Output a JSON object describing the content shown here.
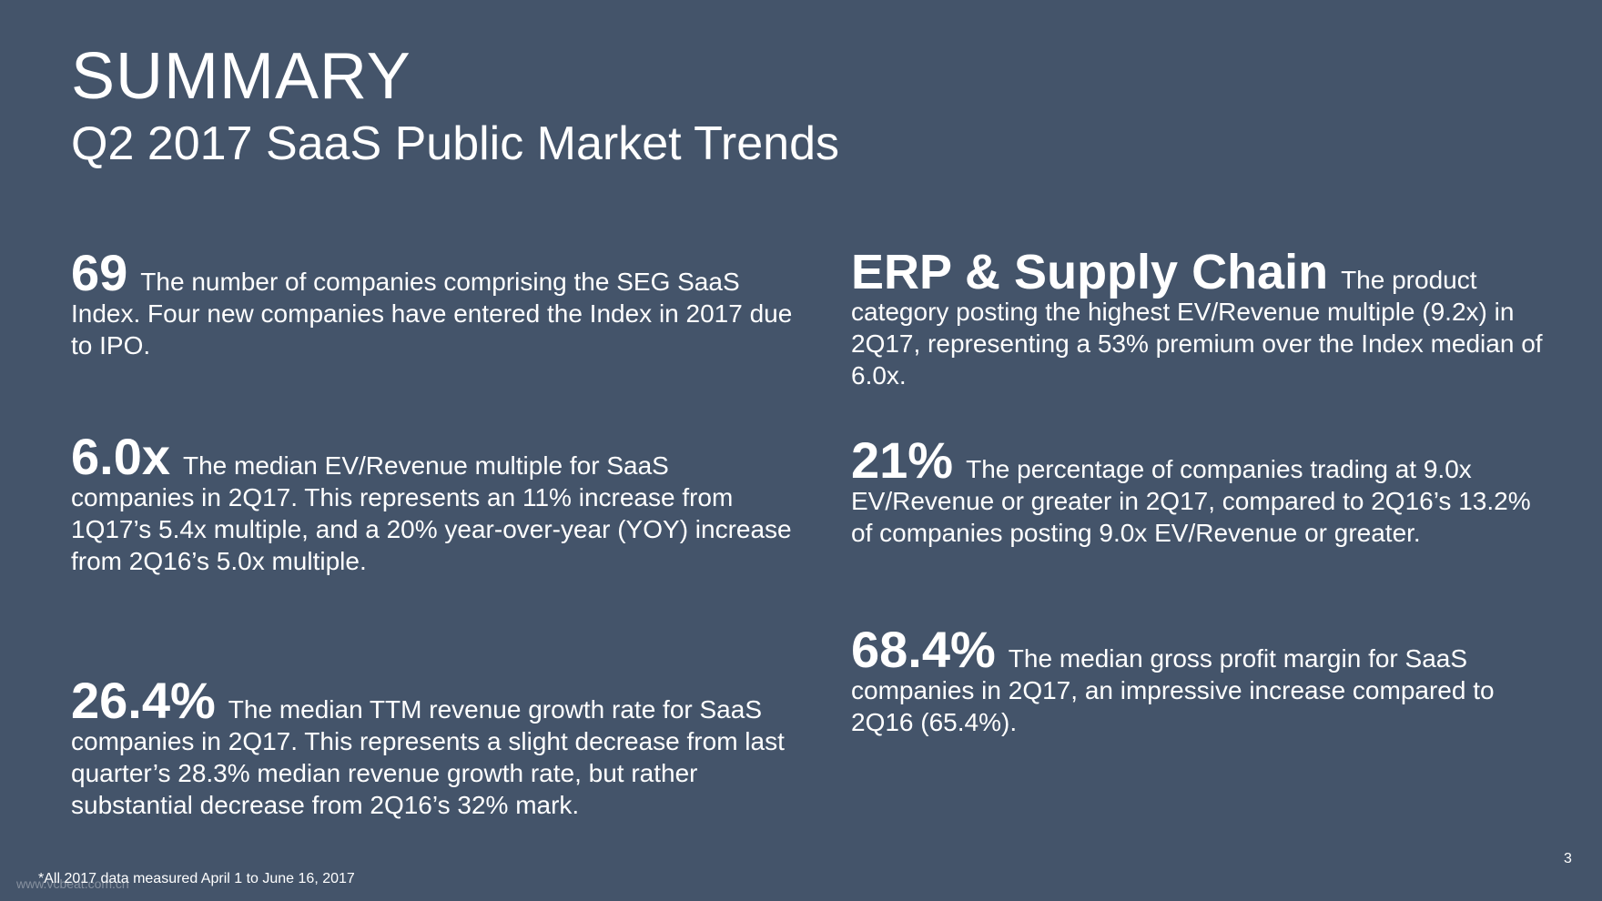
{
  "header": {
    "title": "SUMMARY",
    "subtitle": "Q2 2017 SaaS Public Market Trends"
  },
  "stats": [
    {
      "figure": "69",
      "text": "The number of companies comprising the SEG SaaS Index. Four new companies have entered the Index in 2017 due to IPO."
    },
    {
      "figure": "6.0x",
      "text": "The median EV/Revenue multiple for SaaS companies in 2Q17. This represents an 11% increase from 1Q17’s 5.4x multiple, and a 20% year-over-year (YOY) increase from 2Q16’s 5.0x multiple."
    },
    {
      "figure": "26.4%",
      "text": "The median TTM revenue growth rate for SaaS companies in 2Q17. This represents a slight decrease from last quarter’s 28.3% median revenue growth rate, but rather substantial decrease from 2Q16’s 32% mark."
    },
    {
      "figure": "ERP & Supply Chain",
      "text": "The product category posting the highest EV/Revenue multiple (9.2x) in 2Q17, representing a 53% premium over the Index median of 6.0x."
    },
    {
      "figure": "21%",
      "text": "The percentage of companies trading at 9.0x EV/Revenue or greater in 2Q17, compared to 2Q16’s 13.2% of companies posting 9.0x EV/Revenue or greater."
    },
    {
      "figure": "68.4%",
      "text": "The median gross profit margin for SaaS companies in 2Q17, an impressive increase compared to 2Q16 (65.4%)."
    }
  ],
  "footer": {
    "footnote": "*All 2017 data measured April 1 to June 16, 2017",
    "watermark": "www.vcbeat.com.cn",
    "page_number": "3"
  }
}
